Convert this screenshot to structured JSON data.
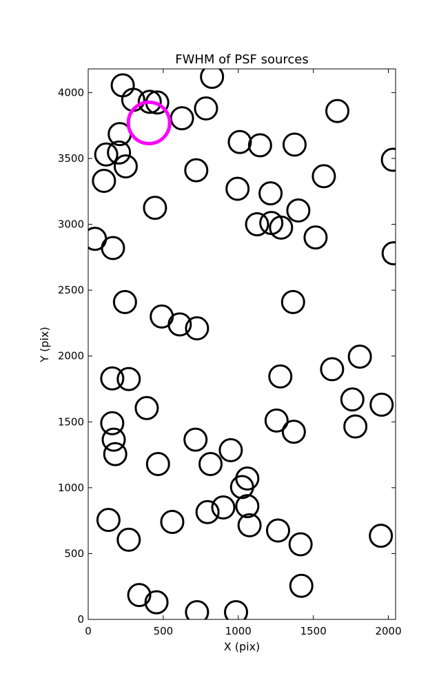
{
  "chart_data": {
    "type": "scatter",
    "title": "FWHM of PSF sources",
    "xlabel": "X (pix)",
    "ylabel": "Y (pix)",
    "xlim": [
      0,
      2048
    ],
    "ylim": [
      0,
      4180
    ],
    "xticks": [
      "0",
      "500",
      "1000",
      "1500",
      "2000"
    ],
    "yticks": [
      "0",
      "500",
      "1000",
      "1500",
      "2000",
      "2500",
      "3000",
      "3500",
      "4000"
    ],
    "grid": false,
    "marker": "open-circle",
    "colors": {
      "default": "#000000",
      "highlight": "#ff00ff"
    },
    "series": [
      {
        "points": [
          {
            "x": 230,
            "y": 4055
          },
          {
            "x": 300,
            "y": 3945
          },
          {
            "x": 410,
            "y": 3930
          },
          {
            "x": 460,
            "y": 3925
          },
          {
            "x": 825,
            "y": 4120
          },
          {
            "x": 625,
            "y": 3805
          },
          {
            "x": 785,
            "y": 3880
          },
          {
            "x": 1660,
            "y": 3860
          },
          {
            "x": 210,
            "y": 3685
          },
          {
            "x": 205,
            "y": 3545
          },
          {
            "x": 120,
            "y": 3530
          },
          {
            "x": 250,
            "y": 3440
          },
          {
            "x": 105,
            "y": 3330
          },
          {
            "x": 1010,
            "y": 3625
          },
          {
            "x": 1145,
            "y": 3600
          },
          {
            "x": 1375,
            "y": 3605
          },
          {
            "x": 2030,
            "y": 3490
          },
          {
            "x": 720,
            "y": 3410
          },
          {
            "x": 1570,
            "y": 3365
          },
          {
            "x": 995,
            "y": 3270
          },
          {
            "x": 1215,
            "y": 3235
          },
          {
            "x": 445,
            "y": 3125
          },
          {
            "x": 1400,
            "y": 3105
          },
          {
            "x": 1125,
            "y": 3000
          },
          {
            "x": 1220,
            "y": 3010
          },
          {
            "x": 1285,
            "y": 2975
          },
          {
            "x": 1515,
            "y": 2900
          },
          {
            "x": 45,
            "y": 2890
          },
          {
            "x": 165,
            "y": 2820
          },
          {
            "x": 2035,
            "y": 2780
          },
          {
            "x": 245,
            "y": 2410
          },
          {
            "x": 1365,
            "y": 2410
          },
          {
            "x": 490,
            "y": 2300
          },
          {
            "x": 610,
            "y": 2240
          },
          {
            "x": 725,
            "y": 2210
          },
          {
            "x": 1810,
            "y": 1995
          },
          {
            "x": 1625,
            "y": 1900
          },
          {
            "x": 160,
            "y": 1830
          },
          {
            "x": 270,
            "y": 1825
          },
          {
            "x": 1280,
            "y": 1845
          },
          {
            "x": 1760,
            "y": 1670
          },
          {
            "x": 1955,
            "y": 1630
          },
          {
            "x": 390,
            "y": 1605
          },
          {
            "x": 160,
            "y": 1490
          },
          {
            "x": 1255,
            "y": 1510
          },
          {
            "x": 1780,
            "y": 1465
          },
          {
            "x": 1370,
            "y": 1425
          },
          {
            "x": 170,
            "y": 1365
          },
          {
            "x": 715,
            "y": 1365
          },
          {
            "x": 950,
            "y": 1285
          },
          {
            "x": 180,
            "y": 1255
          },
          {
            "x": 465,
            "y": 1180
          },
          {
            "x": 815,
            "y": 1180
          },
          {
            "x": 1060,
            "y": 1070
          },
          {
            "x": 1025,
            "y": 1005
          },
          {
            "x": 1060,
            "y": 860
          },
          {
            "x": 900,
            "y": 850
          },
          {
            "x": 795,
            "y": 815
          },
          {
            "x": 135,
            "y": 755
          },
          {
            "x": 560,
            "y": 740
          },
          {
            "x": 1075,
            "y": 715
          },
          {
            "x": 1265,
            "y": 675
          },
          {
            "x": 1950,
            "y": 635
          },
          {
            "x": 270,
            "y": 605
          },
          {
            "x": 1415,
            "y": 570
          },
          {
            "x": 1420,
            "y": 255
          },
          {
            "x": 340,
            "y": 185
          },
          {
            "x": 455,
            "y": 130
          },
          {
            "x": 725,
            "y": 55
          },
          {
            "x": 985,
            "y": 55
          }
        ]
      },
      {
        "highlight": true,
        "points": [
          {
            "x": 405,
            "y": 3770
          }
        ]
      }
    ]
  }
}
